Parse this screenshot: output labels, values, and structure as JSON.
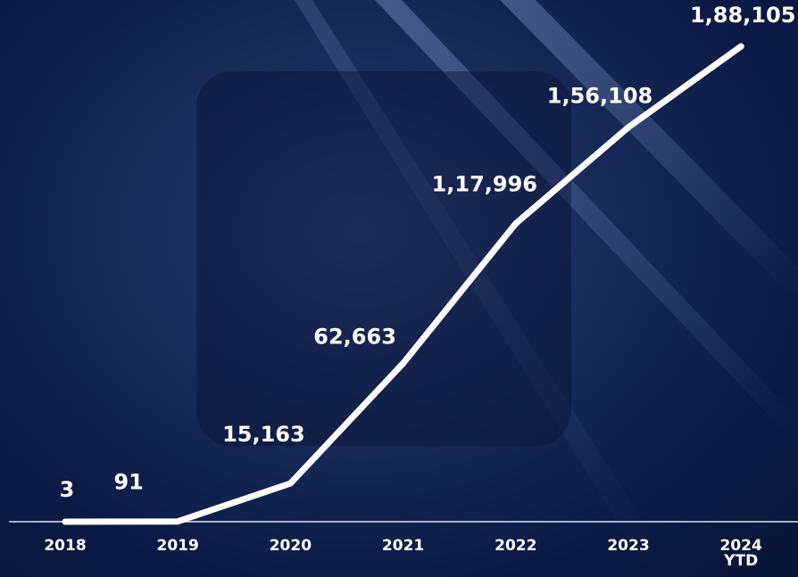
{
  "chart_data": {
    "type": "line",
    "categories": [
      "2018",
      "2019",
      "2020",
      "2021",
      "2022",
      "2023",
      "2024\nYTD"
    ],
    "values": [
      3,
      91,
      15163,
      62663,
      117996,
      156108,
      188105
    ],
    "value_labels": [
      "3",
      "91",
      "15,163",
      "62,663",
      "1,17,996",
      "1,56,108",
      "1,88,105"
    ],
    "color": "#ffffff"
  }
}
